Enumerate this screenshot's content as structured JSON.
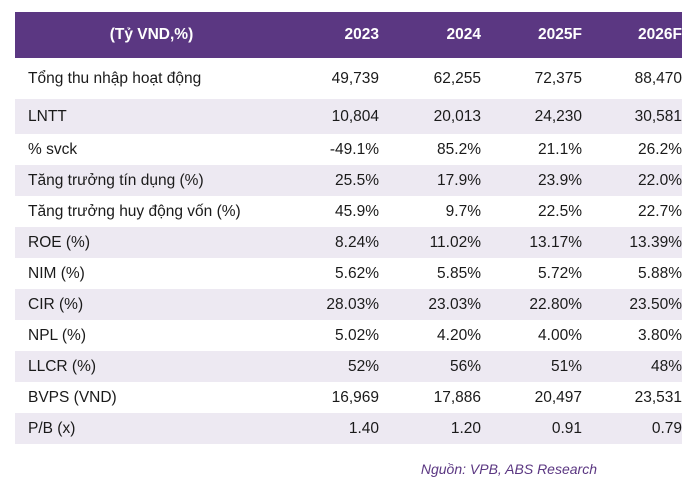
{
  "table": {
    "headers": [
      "(Tỷ VND,%)",
      "2023",
      "2024",
      "2025F",
      "2026F"
    ],
    "rows": [
      {
        "label": "Tổng thu nhập hoạt động",
        "values": [
          "49,739",
          "62,255",
          "72,375",
          "88,470"
        ]
      },
      {
        "label": "LNTT",
        "values": [
          "10,804",
          "20,013",
          "24,230",
          "30,581"
        ]
      },
      {
        "label": "% svck",
        "values": [
          "-49.1%",
          "85.2%",
          "21.1%",
          "26.2%"
        ]
      },
      {
        "label": "Tăng trưởng tín dụng (%)",
        "values": [
          "25.5%",
          "17.9%",
          "23.9%",
          "22.0%"
        ]
      },
      {
        "label": "Tăng trưởng huy động vốn (%)",
        "values": [
          "45.9%",
          "9.7%",
          "22.5%",
          "22.7%"
        ]
      },
      {
        "label": "ROE (%)",
        "values": [
          "8.24%",
          "11.02%",
          "13.17%",
          "13.39%"
        ]
      },
      {
        "label": "NIM (%)",
        "values": [
          "5.62%",
          "5.85%",
          "5.72%",
          "5.88%"
        ]
      },
      {
        "label": "CIR (%)",
        "values": [
          "28.03%",
          "23.03%",
          "22.80%",
          "23.50%"
        ]
      },
      {
        "label": "NPL (%)",
        "values": [
          "5.02%",
          "4.20%",
          "4.00%",
          "3.80%"
        ]
      },
      {
        "label": "LLCR (%)",
        "values": [
          "52%",
          "56%",
          "51%",
          "48%"
        ]
      },
      {
        "label": "BVPS (VND)",
        "values": [
          "16,969",
          "17,886",
          "20,497",
          "23,531"
        ]
      },
      {
        "label": "P/B (x)",
        "values": [
          "1.40",
          "1.20",
          "0.91",
          "0.79"
        ]
      }
    ]
  },
  "source": "Nguồn: VPB, ABS Research",
  "colors": {
    "header_bg": "#5b3782",
    "stripe": "#ede9f2",
    "source_text": "#5b3782"
  }
}
